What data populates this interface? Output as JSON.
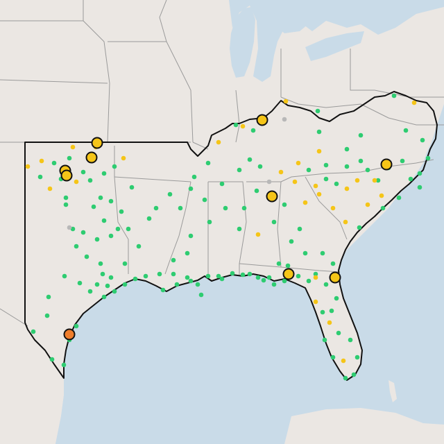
{
  "map": {
    "colors": {
      "water": "#c9dbe8",
      "land": "#ebe7e3",
      "land_alt": "#e4e0dc",
      "border": "#9a9a9a",
      "region_outline": "#111111",
      "status_green": "#2ecc71",
      "status_yellow": "#f5c518",
      "status_orange": "#ef7d2b",
      "status_gray": "#b8b8b8"
    },
    "legend": [],
    "markers": {
      "large": [
        {
          "status": "yellow"
        },
        {
          "status": "yellow"
        },
        {
          "status": "yellow"
        },
        {
          "status": "yellow"
        },
        {
          "status": "yellow"
        },
        {
          "status": "yellow"
        },
        {
          "status": "yellow"
        },
        {
          "status": "yellow"
        },
        {
          "status": "yellow"
        },
        {
          "status": "orange"
        }
      ]
    }
  }
}
